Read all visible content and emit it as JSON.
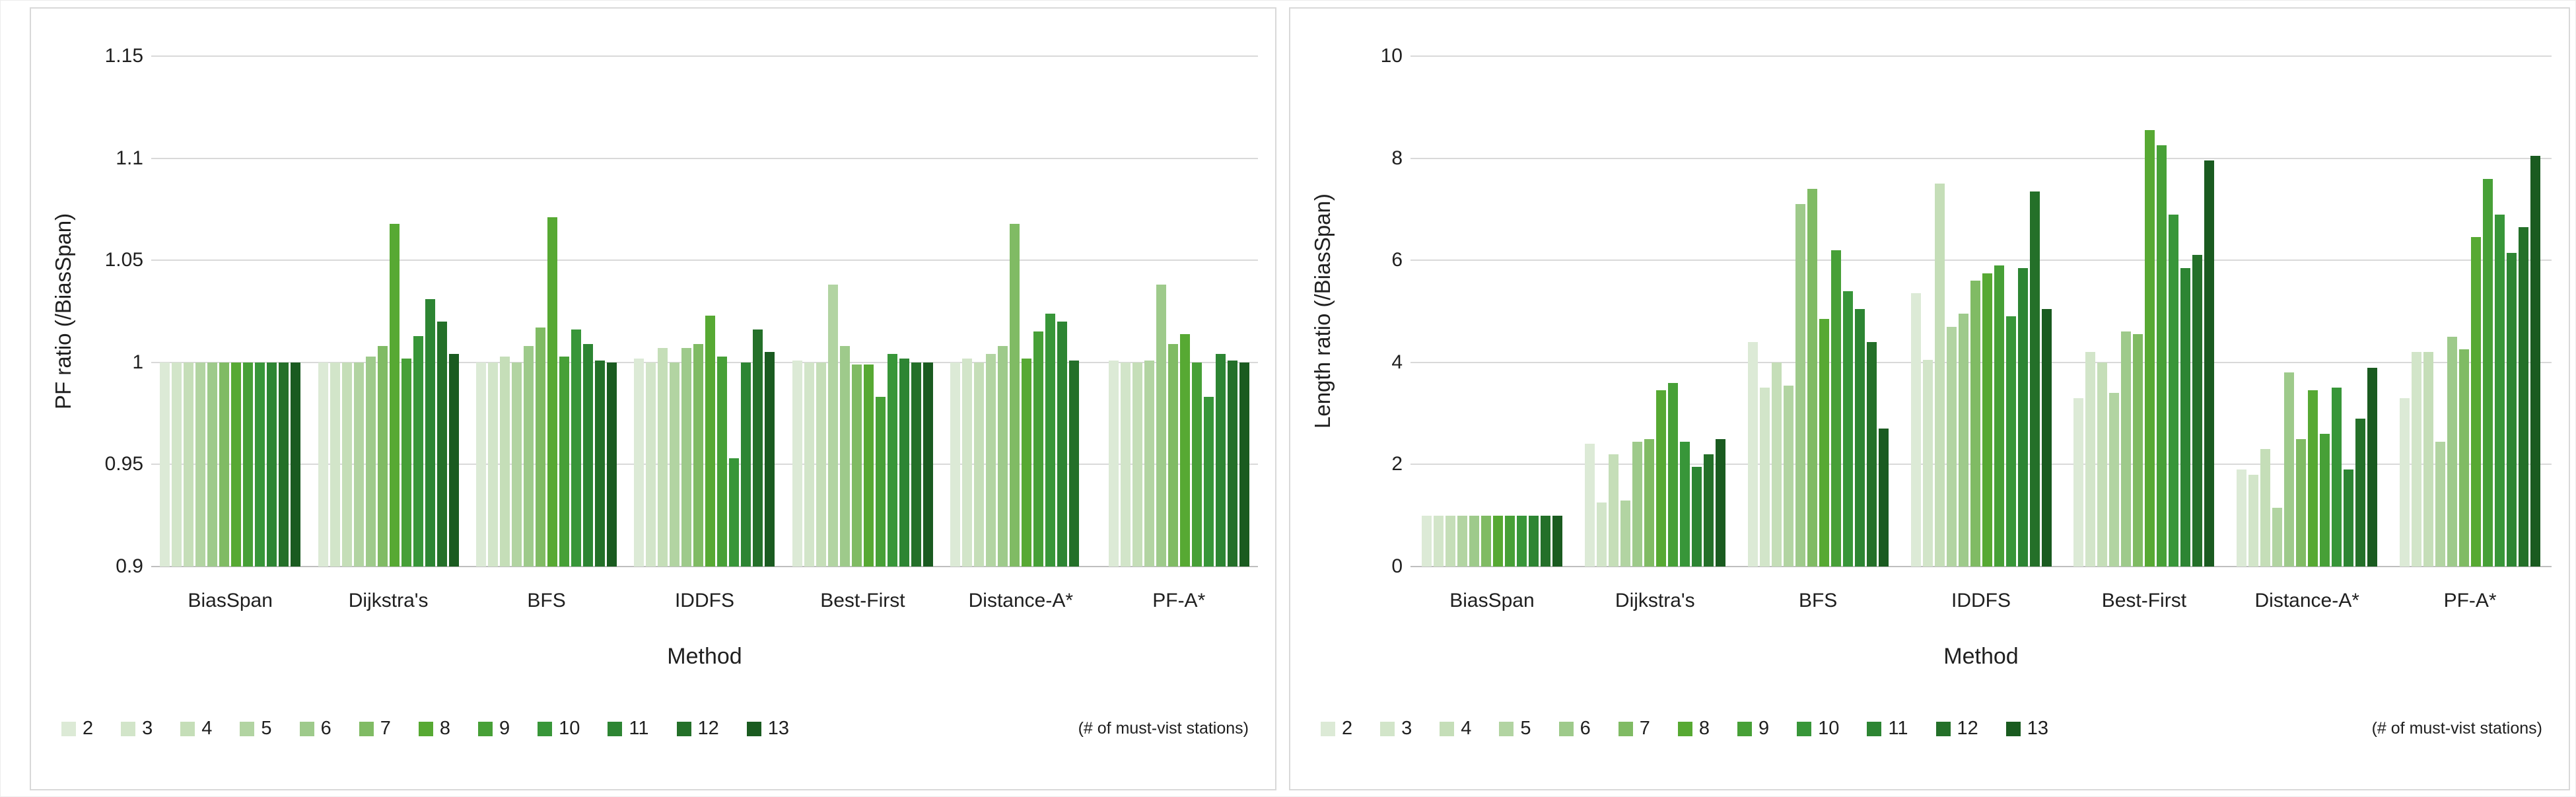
{
  "legend": {
    "labels": [
      "2",
      "3",
      "4",
      "5",
      "6",
      "7",
      "8",
      "9",
      "10",
      "11",
      "12",
      "13"
    ],
    "note": "(# of must-vist stations)",
    "colors": [
      "#dcead6",
      "#d2e5c9",
      "#c5deb8",
      "#b2d4a2",
      "#9eca8b",
      "#80bb64",
      "#57a933",
      "#47a037",
      "#389639",
      "#2d8533",
      "#247029",
      "#1a5b20"
    ]
  },
  "chart_data": [
    {
      "type": "bar",
      "title": "",
      "ylabel": "PF ratio (/BiasSpan)",
      "xlabel": "Method",
      "ylim": [
        0.9,
        1.15
      ],
      "yticks": [
        0.9,
        0.95,
        1,
        1.05,
        1.1,
        1.15
      ],
      "ytick_labels": [
        "0.9",
        "0.95",
        "1",
        "1.05",
        "1.1",
        "1.15"
      ],
      "grid": true,
      "legend_position": "bottom",
      "categories": [
        "BiasSpan",
        "Dijkstra's",
        "BFS",
        "IDDFS",
        "Best-First",
        "Distance-A*",
        "PF-A*"
      ],
      "series": [
        {
          "name": "2",
          "values": [
            1.0,
            1.0,
            1.0,
            1.002,
            1.001,
            1.0,
            1.001
          ]
        },
        {
          "name": "3",
          "values": [
            1.0,
            1.0,
            1.0,
            1.0,
            1.0,
            1.002,
            1.0
          ]
        },
        {
          "name": "4",
          "values": [
            1.0,
            1.0,
            1.003,
            1.007,
            1.0,
            1.0,
            1.0
          ]
        },
        {
          "name": "5",
          "values": [
            1.0,
            1.0,
            1.0,
            1.0,
            1.038,
            1.004,
            1.001
          ]
        },
        {
          "name": "6",
          "values": [
            1.0,
            1.003,
            1.008,
            1.007,
            1.008,
            1.008,
            1.038
          ]
        },
        {
          "name": "7",
          "values": [
            1.0,
            1.008,
            1.017,
            1.009,
            0.999,
            1.068,
            1.009
          ]
        },
        {
          "name": "8",
          "values": [
            1.0,
            1.068,
            1.071,
            1.023,
            0.999,
            1.002,
            1.014
          ]
        },
        {
          "name": "9",
          "values": [
            1.0,
            1.002,
            1.003,
            1.003,
            0.983,
            1.015,
            1.0
          ]
        },
        {
          "name": "10",
          "values": [
            1.0,
            1.013,
            1.016,
            0.953,
            1.004,
            1.024,
            0.983
          ]
        },
        {
          "name": "11",
          "values": [
            1.0,
            1.031,
            1.009,
            1.0,
            1.002,
            1.02,
            1.004
          ]
        },
        {
          "name": "12",
          "values": [
            1.0,
            1.02,
            1.001,
            1.016,
            1.0,
            1.001,
            1.001
          ]
        },
        {
          "name": "13",
          "values": [
            1.0,
            1.004,
            1.0,
            1.005,
            1.0,
            null,
            1.0
          ]
        }
      ]
    },
    {
      "type": "bar",
      "title": "",
      "ylabel": "Length ratio (/BiasSpan)",
      "xlabel": "Method",
      "ylim": [
        0,
        10
      ],
      "yticks": [
        0,
        2,
        4,
        6,
        8,
        10
      ],
      "ytick_labels": [
        "0",
        "2",
        "4",
        "6",
        "8",
        "10"
      ],
      "grid": true,
      "legend_position": "bottom",
      "categories": [
        "BiasSpan",
        "Dijkstra's",
        "BFS",
        "IDDFS",
        "Best-First",
        "Distance-A*",
        "PF-A*"
      ],
      "series": [
        {
          "name": "2",
          "values": [
            1.0,
            2.4,
            4.4,
            5.35,
            3.3,
            1.9,
            3.3
          ]
        },
        {
          "name": "3",
          "values": [
            1.0,
            1.25,
            3.5,
            4.05,
            4.2,
            1.8,
            4.2
          ]
        },
        {
          "name": "4",
          "values": [
            1.0,
            2.2,
            4.0,
            7.5,
            4.0,
            2.3,
            4.2
          ]
        },
        {
          "name": "5",
          "values": [
            1.0,
            1.3,
            3.55,
            4.7,
            3.4,
            1.15,
            2.45
          ]
        },
        {
          "name": "6",
          "values": [
            1.0,
            2.45,
            7.1,
            4.95,
            4.6,
            3.8,
            4.5
          ]
        },
        {
          "name": "7",
          "values": [
            1.0,
            2.5,
            7.4,
            5.6,
            4.55,
            2.5,
            4.25
          ]
        },
        {
          "name": "8",
          "values": [
            1.0,
            3.45,
            4.85,
            5.75,
            8.55,
            3.45,
            6.45
          ]
        },
        {
          "name": "9",
          "values": [
            1.0,
            3.6,
            6.2,
            5.9,
            8.25,
            2.6,
            7.6
          ]
        },
        {
          "name": "10",
          "values": [
            1.0,
            2.45,
            5.4,
            4.9,
            6.9,
            3.5,
            6.9
          ]
        },
        {
          "name": "11",
          "values": [
            1.0,
            1.95,
            5.05,
            5.85,
            5.85,
            1.9,
            6.15
          ]
        },
        {
          "name": "12",
          "values": [
            1.0,
            2.2,
            4.4,
            7.35,
            6.1,
            2.9,
            6.65
          ]
        },
        {
          "name": "13",
          "values": [
            1.0,
            2.5,
            2.7,
            5.05,
            7.95,
            3.9,
            8.05
          ]
        }
      ]
    }
  ]
}
